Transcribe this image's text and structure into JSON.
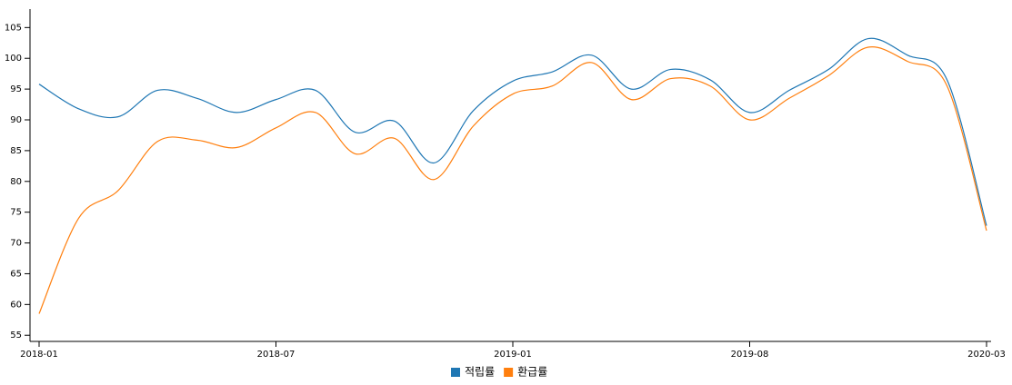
{
  "chart_data": {
    "type": "line",
    "categories": [
      "2018-01",
      null,
      null,
      null,
      null,
      null,
      "2018-07",
      null,
      null,
      null,
      null,
      null,
      "2019-01",
      null,
      null,
      null,
      null,
      null,
      "2019-08",
      null,
      null,
      null,
      null,
      null,
      "2020-03"
    ],
    "series": [
      {
        "name": "적립률",
        "color": "#1f77b4",
        "values": [
          95.8,
          91.8,
          90.5,
          94.8,
          93.5,
          91.2,
          93.3,
          94.8,
          88,
          89.8,
          83,
          91.5,
          96.3,
          97.8,
          100.5,
          95,
          98.2,
          96.5,
          91.2,
          94.8,
          98.2,
          103.2,
          100.5,
          96.5,
          72.8
        ]
      },
      {
        "name": "환급률",
        "color": "#ff7f0e",
        "values": [
          58.5,
          74,
          78.5,
          86.5,
          86.7,
          85.5,
          88.7,
          91.2,
          84.5,
          87,
          80.3,
          89,
          94.2,
          95.5,
          99.3,
          93.3,
          96.7,
          95.5,
          90,
          93.5,
          97.2,
          101.8,
          99.5,
          95.5,
          72
        ]
      }
    ],
    "ylim": [
      54,
      108
    ],
    "yticks": [
      55,
      60,
      65,
      70,
      75,
      80,
      85,
      90,
      95,
      100,
      105
    ],
    "legend": "bottom"
  }
}
